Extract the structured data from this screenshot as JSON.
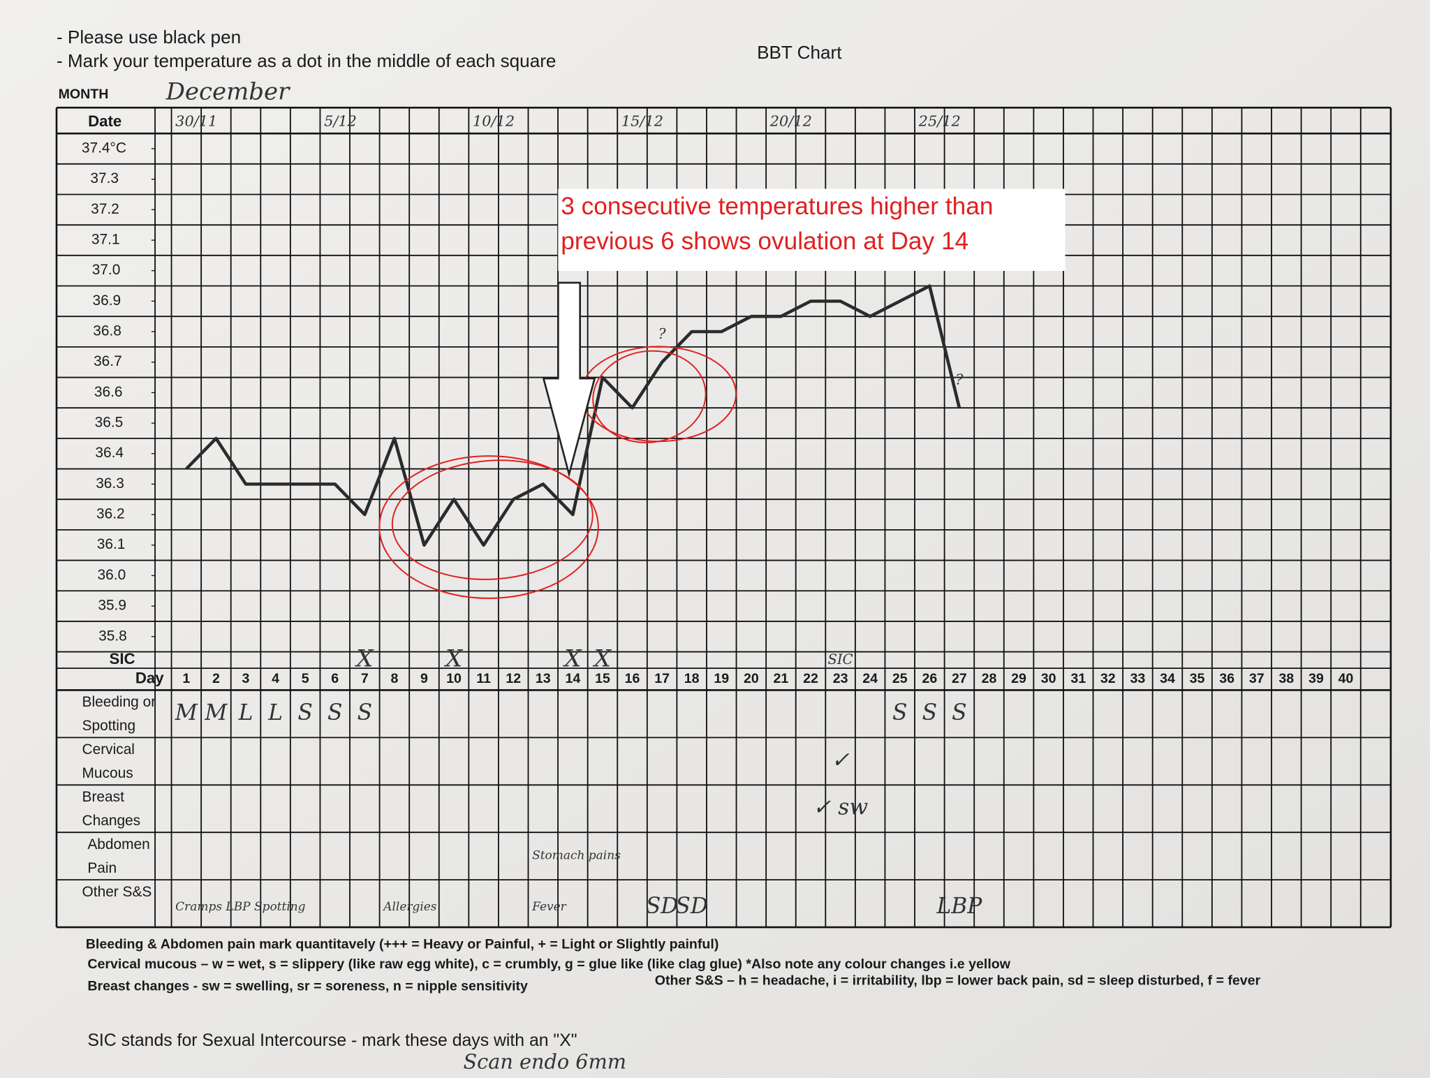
{
  "instructions": [
    "- Please use black pen",
    "- Mark your temperature as a dot in the middle of each square"
  ],
  "title": "BBT Chart",
  "chart_data": {
    "type": "line",
    "x_label": "Day",
    "x": [
      1,
      2,
      3,
      4,
      5,
      6,
      7,
      8,
      9,
      10,
      11,
      12,
      13,
      14,
      15,
      16,
      17,
      18,
      19,
      20,
      21,
      22,
      23,
      24,
      25,
      26,
      27,
      28,
      29,
      30,
      31,
      32,
      33,
      34,
      35,
      36,
      37,
      38,
      39,
      40
    ],
    "values": [
      36.35,
      36.45,
      36.3,
      36.3,
      36.3,
      36.3,
      36.2,
      36.45,
      36.1,
      36.25,
      36.1,
      36.25,
      36.3,
      36.2,
      36.65,
      36.55,
      36.7,
      36.8,
      36.8,
      36.85,
      36.85,
      36.9,
      36.9,
      36.85,
      36.9,
      36.95,
      36.55,
      null,
      null,
      null,
      null,
      null,
      null,
      null,
      null,
      null,
      null,
      null,
      null,
      null
    ],
    "color": "#2b2b2b",
    "ylim": [
      35.8,
      37.4
    ],
    "yticks": [
      {
        "value": 37.4,
        "label": "37.4°C"
      },
      37.3,
      37.2,
      37.1,
      {
        "value": 37.0,
        "label": "37.0"
      },
      36.9,
      36.8,
      36.7,
      36.6,
      36.5,
      36.4,
      36.3,
      36.2,
      36.1,
      {
        "value": 36.0,
        "label": "36.0"
      },
      35.9,
      35.8
    ]
  },
  "form": {
    "month_label": "MONTH",
    "month": "December",
    "date_label": "Date",
    "dates": [
      "30/11",
      null,
      null,
      null,
      null,
      "5/12",
      null,
      null,
      null,
      null,
      "10/12",
      null,
      null,
      null,
      null,
      "15/12",
      null,
      null,
      null,
      null,
      "20/12",
      null,
      null,
      null,
      null,
      "25/12",
      null,
      null,
      null,
      null,
      null,
      null,
      null,
      null,
      null,
      null,
      null,
      null,
      null,
      null
    ],
    "temp_notes": [
      null,
      null,
      null,
      null,
      null,
      null,
      null,
      null,
      null,
      null,
      null,
      null,
      null,
      null,
      null,
      null,
      "?",
      null,
      null,
      null,
      null,
      null,
      null,
      null,
      null,
      null,
      "?",
      null,
      null,
      null,
      null,
      null,
      null,
      null,
      null,
      null,
      null,
      null,
      null,
      null
    ],
    "sic_label": "SIC",
    "sic": [
      null,
      null,
      null,
      null,
      null,
      null,
      "X",
      null,
      null,
      "X",
      null,
      null,
      null,
      "X",
      "X",
      null,
      null,
      null,
      null,
      null,
      null,
      null,
      "SIC",
      null,
      null,
      null,
      null,
      null,
      null,
      null,
      null,
      null,
      null,
      null,
      null,
      null,
      null,
      null,
      null,
      null
    ],
    "rows": [
      {
        "label": [
          "Bleeding or",
          "Spotting"
        ],
        "entries": [
          "M",
          "M",
          "L",
          "L",
          "S",
          "S",
          "S",
          null,
          null,
          null,
          null,
          null,
          null,
          null,
          null,
          null,
          null,
          null,
          null,
          null,
          null,
          null,
          null,
          null,
          "S",
          "S",
          "S",
          null,
          null,
          null,
          null,
          null,
          null,
          null,
          null,
          null,
          null,
          null,
          null,
          null
        ]
      },
      {
        "label": [
          "Cervical",
          "Mucous"
        ],
        "entries": [
          null,
          null,
          null,
          null,
          null,
          null,
          null,
          null,
          null,
          null,
          null,
          null,
          null,
          null,
          null,
          null,
          null,
          null,
          null,
          null,
          null,
          null,
          "✓",
          null,
          null,
          null,
          null,
          null,
          null,
          null,
          null,
          null,
          null,
          null,
          null,
          null,
          null,
          null,
          null,
          null
        ]
      },
      {
        "label": [
          "Breast",
          "Changes"
        ],
        "entries": [
          null,
          null,
          null,
          null,
          null,
          null,
          null,
          null,
          null,
          null,
          null,
          null,
          null,
          null,
          null,
          null,
          null,
          null,
          null,
          null,
          null,
          null,
          "✓ sw",
          null,
          null,
          null,
          null,
          null,
          null,
          null,
          null,
          null,
          null,
          null,
          null,
          null,
          null,
          null,
          null,
          null
        ]
      },
      {
        "label": [
          "Abdomen",
          "Pain"
        ],
        "entries": [
          null,
          null,
          null,
          null,
          null,
          null,
          null,
          null,
          null,
          null,
          null,
          null,
          "Stomach pains",
          null,
          null,
          null,
          null,
          null,
          null,
          null,
          null,
          null,
          null,
          null,
          null,
          null,
          null,
          null,
          null,
          null,
          null,
          null,
          null,
          null,
          null,
          null,
          null,
          null,
          null,
          null
        ]
      },
      {
        "label": [
          "Other S&S"
        ],
        "entries": [
          "Cramps LBP Spotting",
          null,
          null,
          null,
          null,
          null,
          null,
          "Allergies",
          null,
          null,
          null,
          null,
          "Fever",
          null,
          null,
          null,
          "SD",
          "SD",
          null,
          null,
          null,
          null,
          null,
          null,
          null,
          null,
          "LBP",
          null,
          null,
          null,
          null,
          null,
          null,
          null,
          null,
          null,
          null,
          null,
          null,
          null
        ]
      }
    ],
    "key": [
      "Bleeding & Abdomen pain mark quantitavely (+++ = Heavy or Painful, + = Light or Slightly painful)",
      "Cervical mucous – w = wet, s = slippery (like raw egg white), c = crumbly, g = glue like (like clag glue)   *Also note any colour changes i.e yellow",
      "Breast changes - sw = swelling, sr = soreness, n = nipple sensitivity",
      "Other S&S – h = headache, i = irritability, lbp = lower back pain, sd = sleep disturbed, f = fever"
    ],
    "sic_note": "SIC stands for Sexual Intercourse - mark these days with an \"X\"",
    "scan_note": "Scan endo 6mm"
  },
  "annotation": [
    "3 consecutive temperatures higher than",
    "previous 6 shows ovulation at Day 14"
  ]
}
